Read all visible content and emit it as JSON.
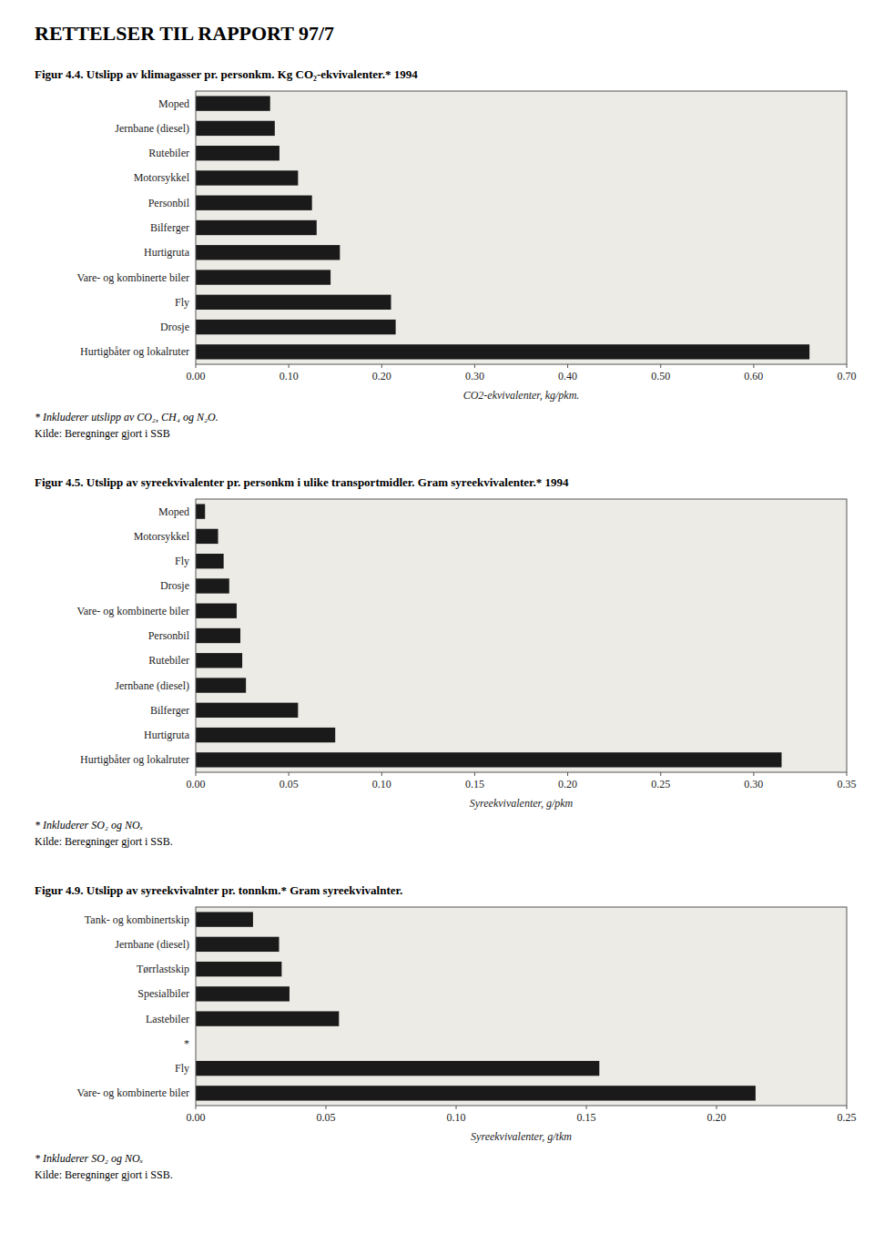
{
  "title": "RETTELSER TIL RAPPORT 97/7",
  "chart_data": [
    {
      "type": "bar",
      "orientation": "horizontal",
      "title": "Figur 4.4. Utslipp av klimagasser pr. personkm. Kg CO₂-ekvivalenter.* 1994",
      "categories": [
        "Moped",
        "Jernbane (diesel)",
        "Rutebiler",
        "Motorsykkel",
        "Personbil",
        "Bilferger",
        "Hurtigruta",
        "Vare- og kombinerte biler",
        "Fly",
        "Drosje",
        "Hurtigbåter og lokalruter"
      ],
      "values": [
        0.08,
        0.085,
        0.09,
        0.11,
        0.125,
        0.13,
        0.155,
        0.145,
        0.21,
        0.215,
        0.66
      ],
      "xlabel": "CO2-ekvivalenter, kg/pkm.",
      "xlim": [
        0.0,
        0.7
      ],
      "xticks": [
        {
          "value": 0.0,
          "label": "0.00"
        },
        {
          "value": 0.1,
          "label": "0.10"
        },
        {
          "value": 0.2,
          "label": "0.20"
        },
        {
          "value": 0.3,
          "label": "0.30"
        },
        {
          "value": 0.4,
          "label": "0.40"
        },
        {
          "value": 0.5,
          "label": "0.50"
        },
        {
          "value": 0.6,
          "label": "0.60"
        },
        {
          "value": 0.7,
          "label": "0.70"
        }
      ],
      "annotations": [
        "* Inkluderer utslipp av CO₂, CH₄ og N₂O.",
        "Kilde: Beregninger gjort i SSB"
      ],
      "color": "#1a1a1a",
      "grid": false
    },
    {
      "type": "bar",
      "orientation": "horizontal",
      "title": "Figur 4.5. Utslipp av syreekvivalenter pr. personkm i ulike transportmidler. Gram syreekvivalenter.* 1994",
      "categories": [
        "Moped",
        "Motorsykkel",
        "Fly",
        "Drosje",
        "Vare- og kombinerte biler",
        "Personbil",
        "Rutebiler",
        "Jernbane (diesel)",
        "Bilferger",
        "Hurtigruta",
        "Hurtigbåter og lokalruter"
      ],
      "values": [
        0.005,
        0.012,
        0.015,
        0.018,
        0.022,
        0.024,
        0.025,
        0.027,
        0.055,
        0.075,
        0.315
      ],
      "xlabel": "Syreekvivalenter, g/pkm",
      "xlim": [
        0.0,
        0.35
      ],
      "xticks": [
        {
          "value": 0.0,
          "label": "0.00"
        },
        {
          "value": 0.05,
          "label": "0.05"
        },
        {
          "value": 0.1,
          "label": "0.10"
        },
        {
          "value": 0.15,
          "label": "0.15"
        },
        {
          "value": 0.2,
          "label": "0.20"
        },
        {
          "value": 0.25,
          "label": "0.25"
        },
        {
          "value": 0.3,
          "label": "0.30"
        },
        {
          "value": 0.35,
          "label": "0.35"
        }
      ],
      "annotations": [
        "* Inkluderer SO₂ og NOₓ",
        "Kilde: Beregninger gjort i SSB."
      ],
      "color": "#1a1a1a",
      "grid": false
    },
    {
      "type": "bar",
      "orientation": "horizontal",
      "title": "Figur 4.9. Utslipp av syreekvivalnter pr. tonnkm.* Gram syreekvivalnter.",
      "categories": [
        "Tank- og kombinertskip",
        "Jernbane (diesel)",
        "Tørrlastskip",
        "Spesialbiler",
        "Lastebiler",
        "*",
        "Fly",
        "Vare- og kombinerte biler"
      ],
      "values": [
        0.022,
        0.032,
        0.033,
        0.036,
        0.055,
        0.0,
        0.155,
        0.215
      ],
      "xlabel": "Syreekvivalenter, g/tkm",
      "xlim": [
        0.0,
        0.25
      ],
      "xticks": [
        {
          "value": 0.0,
          "label": "0.00"
        },
        {
          "value": 0.05,
          "label": "0.05"
        },
        {
          "value": 0.1,
          "label": "0.10"
        },
        {
          "value": 0.15,
          "label": "0.15"
        },
        {
          "value": 0.2,
          "label": "0.20"
        },
        {
          "value": 0.25,
          "label": "0.25"
        }
      ],
      "annotations": [
        "* Inkluderer SO₂ og NOₓ",
        "Kilde: Beregninger gjort i SSB."
      ],
      "color": "#1a1a1a",
      "grid": false
    }
  ]
}
